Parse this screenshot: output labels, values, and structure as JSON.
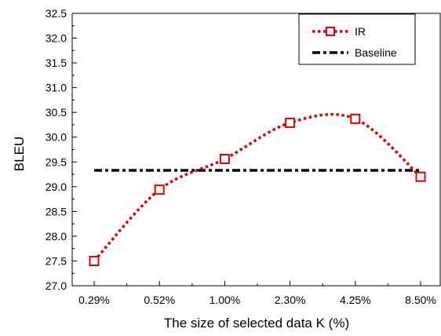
{
  "chart_data": {
    "type": "line",
    "title": "",
    "xlabel": "The size of selected data K (%)",
    "ylabel": "BLEU",
    "categories": [
      "0.29%",
      "0.52%",
      "1.00%",
      "2.30%",
      "4.25%",
      "8.50%"
    ],
    "ylim": [
      27.0,
      32.5
    ],
    "yticks": [
      "27.0",
      "27.5",
      "28.0",
      "28.5",
      "29.0",
      "29.5",
      "30.0",
      "30.5",
      "31.0",
      "31.5",
      "32.0",
      "32.5"
    ],
    "series": [
      {
        "name": "IR",
        "values": [
          27.5,
          28.94,
          29.56,
          30.29,
          30.37,
          29.2
        ],
        "color": "#e00000",
        "style": "dotted",
        "marker": "square"
      },
      {
        "name": "Baseline",
        "values": [
          29.33,
          29.33,
          29.33,
          29.33,
          29.33,
          29.33
        ],
        "color": "#000000",
        "style": "dash-dot"
      }
    ],
    "legend": {
      "placement": "top-right"
    },
    "grid": false
  }
}
